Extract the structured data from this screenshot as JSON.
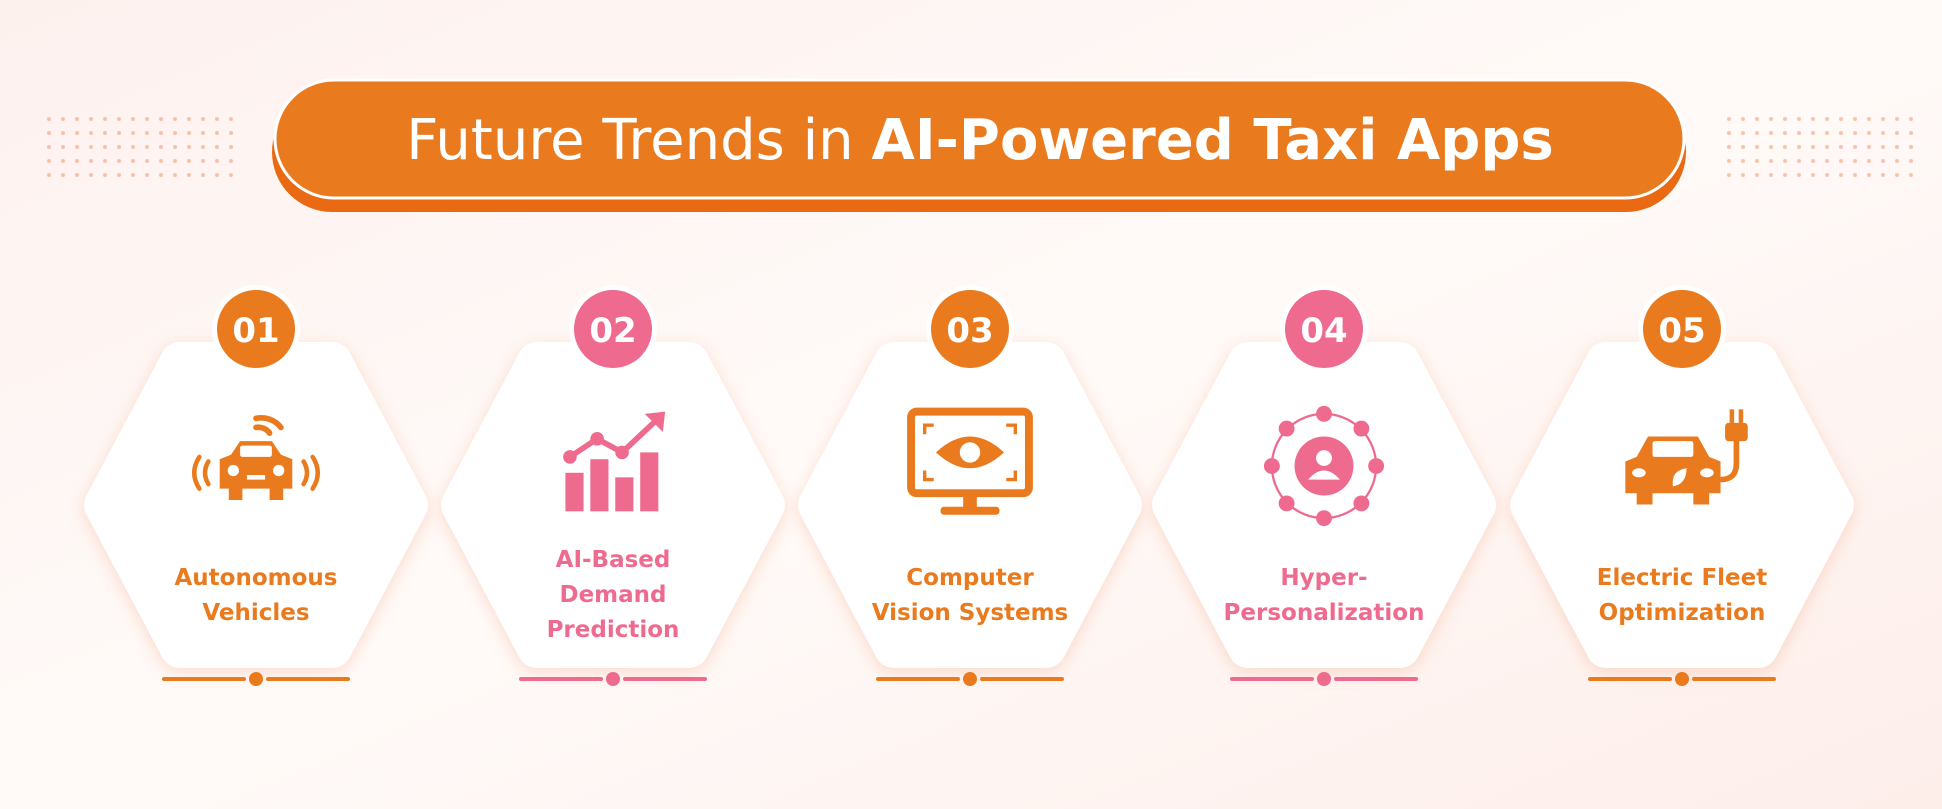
{
  "header": {
    "title_regular": "Future Trends in ",
    "title_bold": "AI-Powered Taxi Apps"
  },
  "items": [
    {
      "number": "01",
      "lines": [
        "Autonomous",
        "Vehicles"
      ]
    },
    {
      "number": "02",
      "lines": [
        "AI-Based",
        "Demand",
        "Prediction"
      ]
    },
    {
      "number": "03",
      "lines": [
        "Computer",
        "Vision Systems"
      ]
    },
    {
      "number": "04",
      "lines": [
        "Hyper-",
        "Personalization"
      ]
    },
    {
      "number": "05",
      "lines": [
        "Electric Fleet",
        "Optimization"
      ]
    }
  ]
}
